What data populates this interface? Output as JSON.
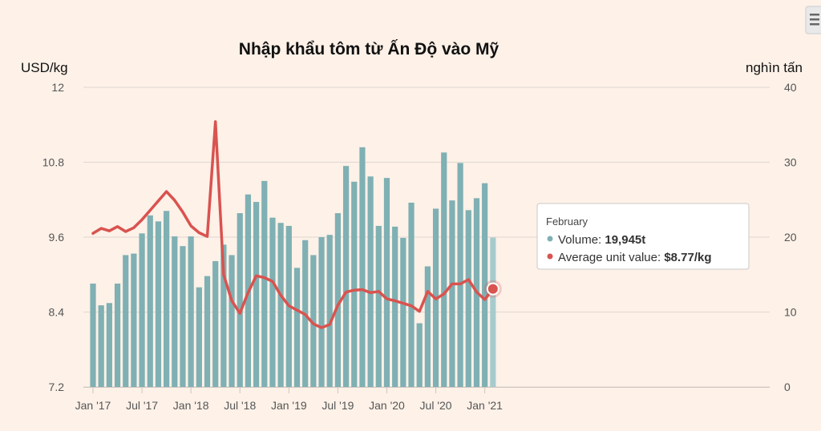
{
  "chart_data": {
    "type": "bar+line",
    "title": "Nhập khẩu tôm từ Ấn Độ vào Mỹ",
    "ylabel_left": "USD/kg",
    "ylabel_right": "nghìn tấn",
    "ylim_left": [
      7.2,
      12
    ],
    "ylim_right": [
      0,
      40
    ],
    "yticks_left": [
      "12",
      "10.8",
      "9.6",
      "8.4",
      "7.2"
    ],
    "yticks_right": [
      "40",
      "30",
      "20",
      "10",
      "0"
    ],
    "xtick_labels": [
      "Jan '17",
      "Jul '17",
      "Jan '18",
      "Jul '18",
      "Jan '19",
      "Jul '19",
      "Jan '20",
      "Jul '20",
      "Jan '21"
    ],
    "grid": true,
    "colors": {
      "bar": "#7fb0b3",
      "bar_last": "#a7cbcd",
      "line": "#d9534f"
    },
    "months": [
      "Jan 2017",
      "Feb 2017",
      "Mar 2017",
      "Apr 2017",
      "May 2017",
      "Jun 2017",
      "Jul 2017",
      "Aug 2017",
      "Sep 2017",
      "Oct 2017",
      "Nov 2017",
      "Dec 2017",
      "Jan 2018",
      "Feb 2018",
      "Mar 2018",
      "Apr 2018",
      "May 2018",
      "Jun 2018",
      "Jul 2018",
      "Aug 2018",
      "Sep 2018",
      "Oct 2018",
      "Nov 2018",
      "Dec 2018",
      "Jan 2019",
      "Feb 2019",
      "Mar 2019",
      "Apr 2019",
      "May 2019",
      "Jun 2019",
      "Jul 2019",
      "Aug 2019",
      "Sep 2019",
      "Oct 2019",
      "Nov 2019",
      "Dec 2019",
      "Jan 2020",
      "Feb 2020",
      "Mar 2020",
      "Apr 2020",
      "May 2020",
      "Jun 2020",
      "Jul 2020",
      "Aug 2020",
      "Sep 2020",
      "Oct 2020",
      "Nov 2020",
      "Dec 2020",
      "Jan 2021",
      "Feb 2021"
    ],
    "series": [
      {
        "name": "Volume",
        "axis": "right",
        "unit": "t",
        "values": [
          13.8,
          10.9,
          11.2,
          13.8,
          17.6,
          17.8,
          20.5,
          22.9,
          22.1,
          23.5,
          20.1,
          18.8,
          20.1,
          13.3,
          14.8,
          16.8,
          19.0,
          17.6,
          23.2,
          25.7,
          24.7,
          27.5,
          22.6,
          21.9,
          21.5,
          15.9,
          19.6,
          17.6,
          20.0,
          20.3,
          23.2,
          29.5,
          27.4,
          32.0,
          28.1,
          21.5,
          27.9,
          21.4,
          19.9,
          24.6,
          8.5,
          16.1,
          23.8,
          31.3,
          24.9,
          29.9,
          23.6,
          25.2,
          27.2,
          19.945
        ]
      },
      {
        "name": "Average unit value",
        "axis": "left",
        "unit": "USD/kg",
        "values": [
          9.66,
          9.74,
          9.7,
          9.77,
          9.69,
          9.75,
          9.88,
          10.03,
          10.18,
          10.33,
          10.19,
          10.0,
          9.78,
          9.67,
          9.61,
          11.45,
          9.0,
          8.58,
          8.38,
          8.71,
          8.98,
          8.95,
          8.89,
          8.67,
          8.5,
          8.43,
          8.36,
          8.21,
          8.15,
          8.2,
          8.51,
          8.72,
          8.75,
          8.76,
          8.71,
          8.73,
          8.61,
          8.58,
          8.54,
          8.5,
          8.41,
          8.73,
          8.61,
          8.69,
          8.85,
          8.85,
          8.92,
          8.72,
          8.6,
          8.77
        ]
      }
    ],
    "tooltip": {
      "header": "February",
      "items": [
        {
          "label": "Volume: ",
          "value": "19,945t"
        },
        {
          "label": "Average unit value: ",
          "value": "$8.77/kg"
        }
      ]
    }
  },
  "ui": {
    "menu_icon": "hamburger-menu-icon"
  }
}
